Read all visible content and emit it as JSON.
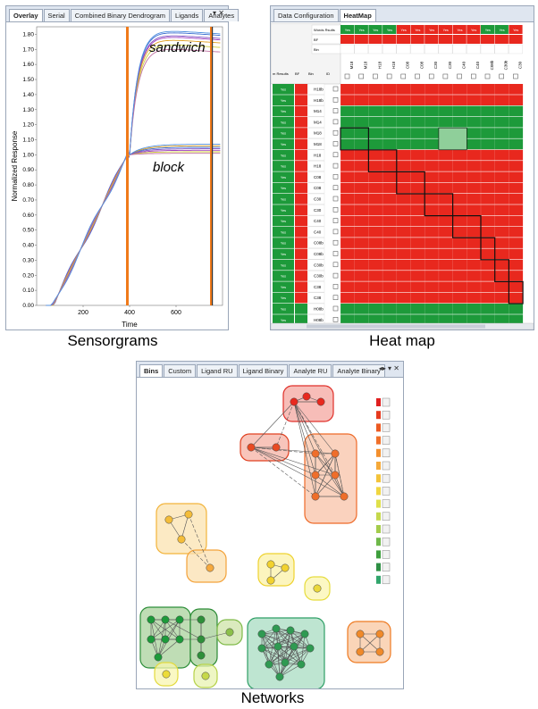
{
  "sensorgrams": {
    "tabs": [
      "Overlay",
      "Serial",
      "Combined Binary Dendrogram",
      "Ligands",
      "Analytes"
    ],
    "controls": "▾ ✕",
    "ylabel": "Normalized Response",
    "xlabel": "Time",
    "yticks": [
      "0.00",
      "0.10",
      "0.20",
      "0.30",
      "0.40",
      "0.50",
      "0.60",
      "0.70",
      "0.80",
      "0.90",
      "1.00",
      "1.10",
      "1.20",
      "1.30",
      "1.40",
      "1.50",
      "1.60",
      "1.70",
      "1.80"
    ],
    "xticks": [
      "200",
      "400",
      "600"
    ],
    "label_sandwich": "sandwich",
    "label_block": "block",
    "caption": "Sensorgrams"
  },
  "heatmap": {
    "tabs": [
      "Data Configuration",
      "HeatMap"
    ],
    "caption": "Heat map",
    "header_rows": [
      "Words Rsults",
      "BF",
      "Bin"
    ],
    "left_header": [
      "m Results",
      "BF",
      "Bin",
      "ID"
    ],
    "col_ids": [
      "M18",
      "M18",
      "H18",
      "H18",
      "C08",
      "C08",
      "C30",
      "C30",
      "C40",
      "C40",
      "C08b",
      "C30b",
      "C30"
    ],
    "row_ids": [
      "H18b",
      "H18b",
      "M14",
      "M14",
      "M18",
      "M18",
      "H18",
      "H18",
      "C08",
      "C08",
      "C30",
      "C30",
      "C40",
      "C40",
      "C08b",
      "C08b",
      "C30b",
      "C30b",
      "C38",
      "C38",
      "H08b",
      "H08b"
    ],
    "yes_label": "Yes"
  },
  "networks": {
    "tabs": [
      "Bins",
      "Custom",
      "Ligand RU",
      "Ligand Binary",
      "Analyte RU",
      "Analyte Binary"
    ],
    "controls": "◂▸ ▾ ✕",
    "caption": "Networks",
    "legend_colors": [
      "#e02020",
      "#e63a1e",
      "#ec5a22",
      "#f0702a",
      "#f3902e",
      "#f5a93a",
      "#f3c33a",
      "#f0d640",
      "#dfe04a",
      "#c5d84c",
      "#a4cc4c",
      "#6fb84a",
      "#3e9e3c",
      "#2e8f44",
      "#31a56c"
    ]
  },
  "colors": {
    "red": "#e8281e",
    "green": "#1d9a3a",
    "orange": "#f07a1a",
    "yellow": "#f2d22e"
  }
}
